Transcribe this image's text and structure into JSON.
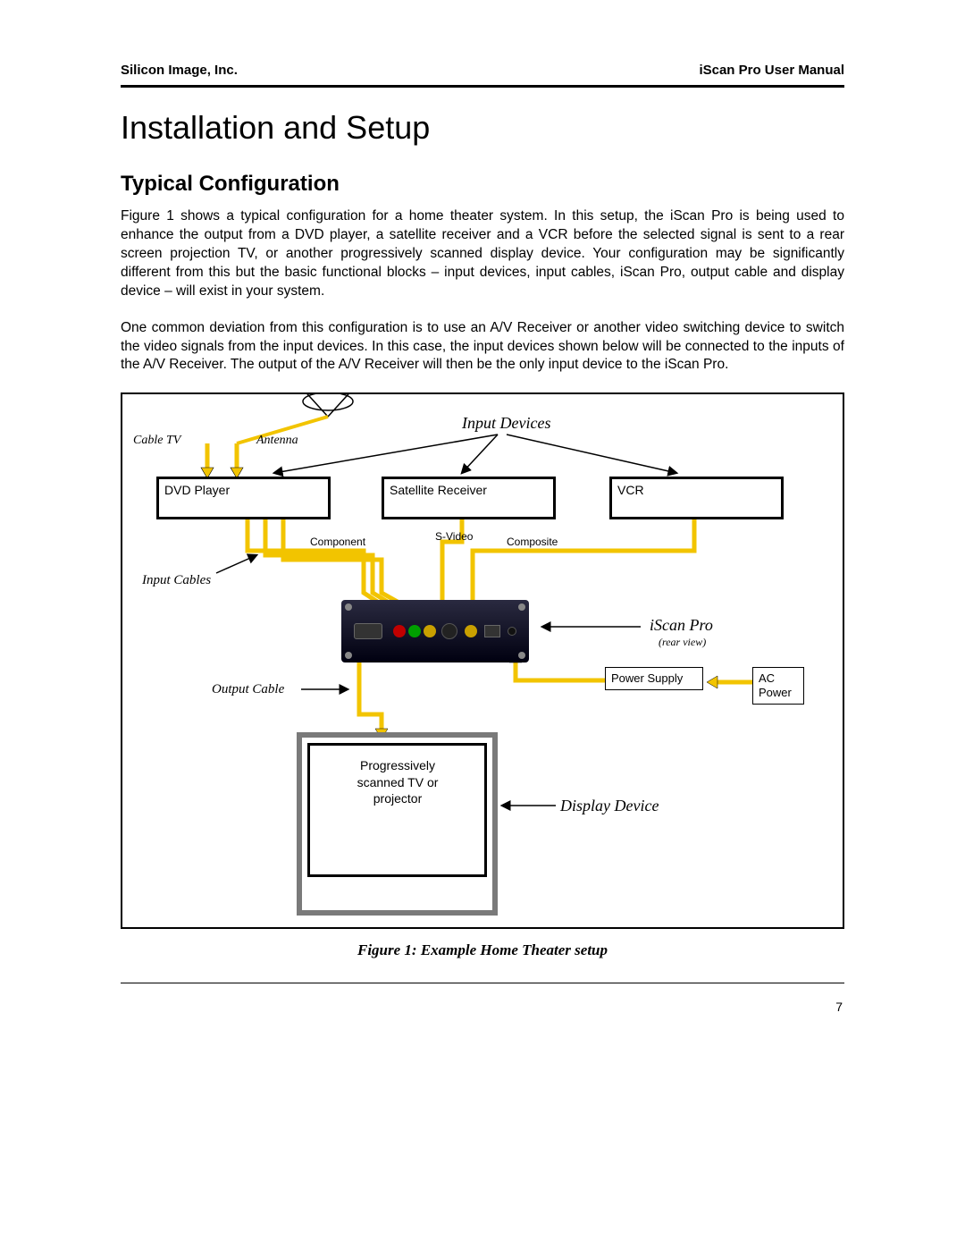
{
  "header": {
    "left": "Silicon Image, Inc.",
    "right": "iScan Pro User Manual"
  },
  "title": "Installation and Setup",
  "section": "Typical Configuration",
  "para1": "Figure 1 shows a typical configuration for a home theater system. In this setup, the  iScan Pro is being used to enhance the output from a DVD player, a satellite receiver and a VCR before the selected signal is sent to a rear screen projection TV, or another progressively scanned display device.  Your configuration may be significantly different from this but the basic functional blocks – input devices, input cables, iScan Pro, output cable and display device – will exist in your system.",
  "para2": "One common deviation from this configuration is to use an A/V Receiver or another video switching device to switch the video signals from the input devices. In this case, the input devices shown below will be connected to the inputs of the A/V Receiver. The output of the A/V Receiver will then be the only input device to the iScan Pro.",
  "fig": {
    "input_devices_label": "Input Devices",
    "cable_tv": "Cable TV",
    "antenna": "Antenna",
    "dvd": "DVD Player",
    "satellite": "Satellite Receiver",
    "vcr": "VCR",
    "component": "Component",
    "svideo": "S-Video",
    "composite": "Composite",
    "input_cables": "Input Cables",
    "iscan_label": "iScan Pro",
    "rear_view": "(rear view)",
    "output_cable": "Output Cable",
    "power_supply": "Power Supply",
    "ac_power": "AC Power",
    "display_text": "Progressively scanned TV or projector",
    "display_device": "Display Device",
    "caption": "Figure 1: Example Home Theater setup",
    "colors": {
      "cable": "#f2c400",
      "arrow": "#000000",
      "box_border": "#000000",
      "tv_border": "#7a7a7a"
    }
  },
  "page_number": "7"
}
